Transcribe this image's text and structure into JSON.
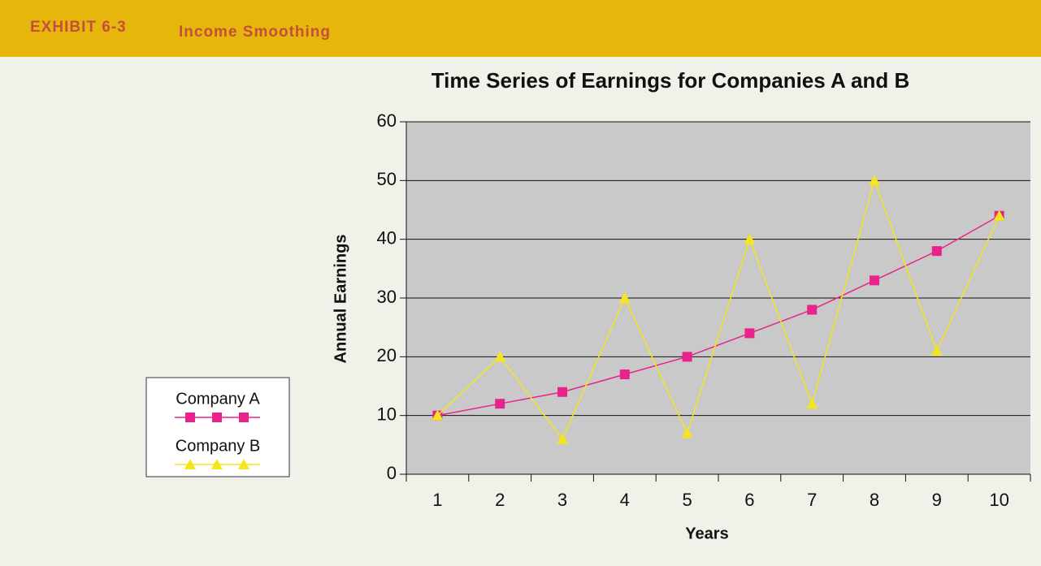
{
  "header": {
    "exhibit": "EXHIBIT 6-3",
    "title": "Income Smoothing"
  },
  "chart_data": {
    "type": "line",
    "title": "Time Series of Earnings for Companies A and B",
    "xlabel": "Years",
    "ylabel": "Annual Earnings",
    "categories": [
      "1",
      "2",
      "3",
      "4",
      "5",
      "6",
      "7",
      "8",
      "9",
      "10"
    ],
    "series": [
      {
        "name": "Company A",
        "color": "#e8238c",
        "marker": "square",
        "values": [
          10,
          12,
          14,
          17,
          20,
          24,
          28,
          33,
          38,
          44
        ]
      },
      {
        "name": "Company B",
        "color": "#f5e51e",
        "marker": "triangle",
        "values": [
          10,
          20,
          6,
          30,
          7,
          40,
          12,
          50,
          21,
          44
        ]
      }
    ],
    "ylim": [
      0,
      60
    ],
    "yticks": [
      0,
      10,
      20,
      30,
      40,
      50,
      60
    ],
    "grid": true,
    "legend": "left"
  }
}
